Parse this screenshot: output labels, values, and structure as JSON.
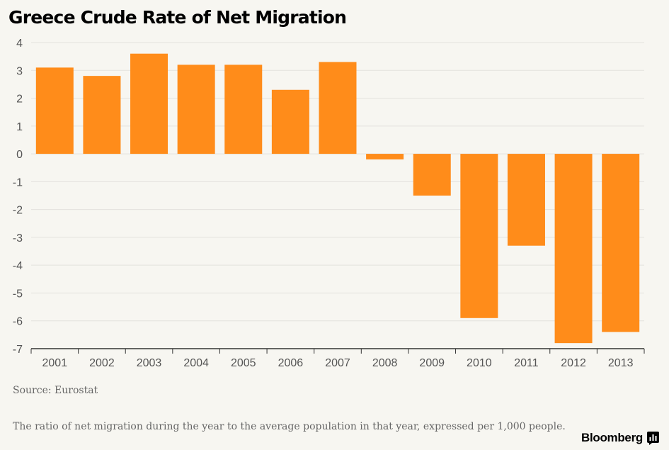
{
  "title": "Greece Crude Rate of Net Migration",
  "source": "Source: Eurostat",
  "note": "The ratio of net migration during the year to the average population in that year, expressed per 1,000 people.",
  "brand": "Bloomberg",
  "colors": {
    "bar": "#ff8c1a",
    "grid": "#e3e2dd",
    "axis": "#333333",
    "text": "#555555"
  },
  "chart_data": {
    "type": "bar",
    "title": "Greece Crude Rate of Net Migration",
    "xlabel": "",
    "ylabel": "",
    "categories": [
      "2001",
      "2002",
      "2003",
      "2004",
      "2005",
      "2006",
      "2007",
      "2008",
      "2009",
      "2010",
      "2011",
      "2012",
      "2013"
    ],
    "values": [
      3.1,
      2.8,
      3.6,
      3.2,
      3.2,
      2.3,
      3.3,
      -0.2,
      -1.5,
      -5.9,
      -3.3,
      -6.8,
      -6.4
    ],
    "ylim": [
      -7,
      4
    ],
    "yticks": [
      "4",
      "3",
      "2",
      "1",
      "0",
      "-1",
      "-2",
      "-3",
      "-4",
      "-5",
      "-6",
      "-7"
    ],
    "grid": true,
    "legend": "none"
  }
}
